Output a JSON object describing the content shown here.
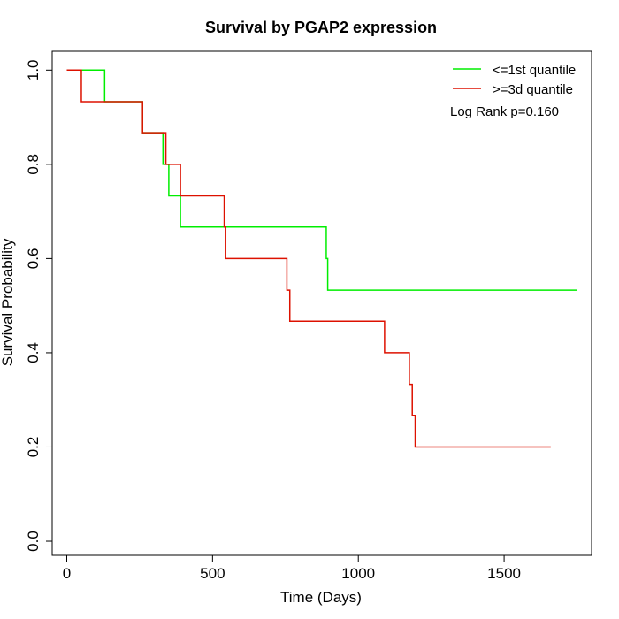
{
  "chart_data": {
    "type": "line",
    "title": "Survival by PGAP2 expression",
    "xlabel": "Time (Days)",
    "ylabel": "Survival Probability",
    "xlim": [
      -50,
      1800
    ],
    "ylim": [
      -0.03,
      1.04
    ],
    "xticks": [
      0,
      500,
      1000,
      1500
    ],
    "yticks": [
      0.0,
      0.2,
      0.4,
      0.6,
      0.8,
      1.0
    ],
    "xtick_labels": [
      "0",
      "500",
      "1000",
      "1500"
    ],
    "ytick_labels": [
      "0.0",
      "0.2",
      "0.4",
      "0.6",
      "0.8",
      "1.0"
    ],
    "grid": false,
    "legend_position": "top-right",
    "annotation": "Log Rank p=0.160",
    "series": [
      {
        "name": "<=1st quantile",
        "color": "#00ee00",
        "step_points": [
          [
            0,
            1.0
          ],
          [
            130,
            0.933
          ],
          [
            260,
            0.867
          ],
          [
            330,
            0.8
          ],
          [
            350,
            0.733
          ],
          [
            390,
            0.667
          ],
          [
            890,
            0.6
          ],
          [
            895,
            0.533
          ],
          [
            1750,
            0.533
          ]
        ]
      },
      {
        "name": ">=3d quantile",
        "color": "#dd1100",
        "step_points": [
          [
            0,
            1.0
          ],
          [
            50,
            0.933
          ],
          [
            260,
            0.867
          ],
          [
            340,
            0.8
          ],
          [
            390,
            0.733
          ],
          [
            540,
            0.667
          ],
          [
            545,
            0.6
          ],
          [
            755,
            0.533
          ],
          [
            765,
            0.467
          ],
          [
            1090,
            0.4
          ],
          [
            1175,
            0.333
          ],
          [
            1185,
            0.267
          ],
          [
            1195,
            0.2
          ],
          [
            1660,
            0.2
          ]
        ]
      }
    ]
  }
}
